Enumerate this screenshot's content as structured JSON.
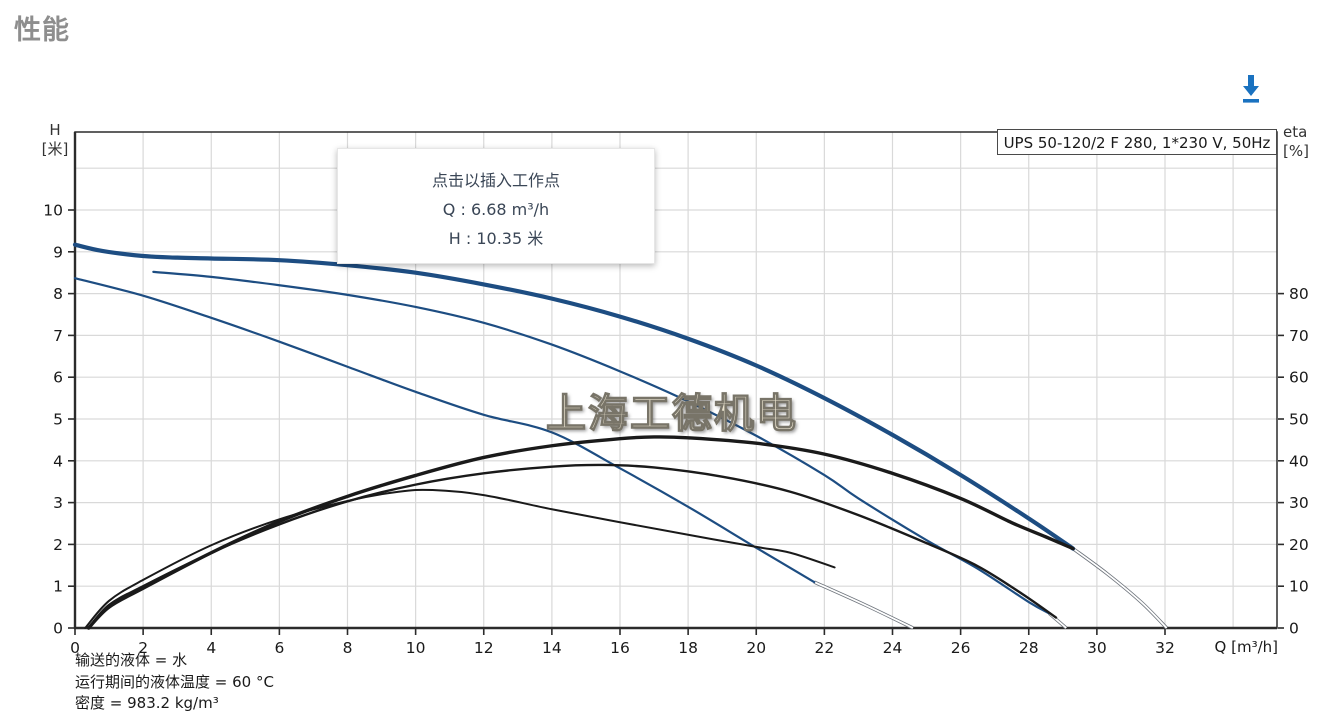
{
  "page": {
    "title": "性能"
  },
  "toolbar": {
    "download_tooltip": "download"
  },
  "tooltip": {
    "line1": "点击以插入工作点",
    "line2": "Q : 6.68 m³/h",
    "line3": "H : 10.35 米"
  },
  "footnotes": {
    "liquid": "输送的液体 = 水",
    "temperature": "运行期间的液体温度 = 60 °C",
    "density": "密度 = 983.2 kg/m³"
  },
  "chart_data": {
    "type": "line",
    "title": "UPS 50-120/2 F 280, 1*230 V, 50Hz",
    "watermark": "上海工德机电",
    "x_axis": {
      "label": "Q [m³/h]",
      "min": 0,
      "max": 35.3,
      "tick_step": 2,
      "ticks": [
        0,
        2,
        4,
        6,
        8,
        10,
        12,
        14,
        16,
        18,
        20,
        22,
        24,
        26,
        28,
        30,
        32
      ],
      "grid_max": 34
    },
    "y_left_axis": {
      "label_line1": "H",
      "label_line2": "[米]",
      "min": 0,
      "max": 11.87,
      "ticks": [
        0,
        1,
        2,
        3,
        4,
        5,
        6,
        7,
        8,
        9,
        10
      ],
      "grid_max": 11
    },
    "y_right_axis": {
      "label_line1": "eta",
      "label_line2": "[%]",
      "min": 0,
      "max": 118.7,
      "ticks": [
        0,
        10,
        20,
        30,
        40,
        50,
        60,
        70,
        80
      ]
    },
    "colors": {
      "blue": "#1d4d82",
      "black": "#1a1a1a",
      "extension_gray": "#6e747c",
      "grid": "#d9d9d9",
      "axis": "#2b2b2b",
      "accent_blue": "#1a72c0",
      "title_gray": "#8e8e8e"
    },
    "legend_position": "none",
    "grid": true,
    "series": [
      {
        "name": "speed3-head-curve",
        "axis": "H",
        "role": "blue",
        "width": 4.2,
        "points": [
          [
            0,
            9.17
          ],
          [
            0.8,
            9.02
          ],
          [
            2,
            8.9
          ],
          [
            3,
            8.86
          ],
          [
            4,
            8.84
          ],
          [
            6,
            8.8
          ],
          [
            8,
            8.68
          ],
          [
            10,
            8.5
          ],
          [
            12,
            8.22
          ],
          [
            14,
            7.88
          ],
          [
            16,
            7.45
          ],
          [
            18,
            6.92
          ],
          [
            20,
            6.28
          ],
          [
            22,
            5.5
          ],
          [
            24,
            4.62
          ],
          [
            26,
            3.66
          ],
          [
            28,
            2.62
          ],
          [
            29.3,
            1.9
          ]
        ]
      },
      {
        "name": "speed2-head-curve",
        "axis": "H",
        "role": "blue",
        "width": 2.2,
        "points": [
          [
            2.3,
            8.52
          ],
          [
            4,
            8.4
          ],
          [
            6,
            8.2
          ],
          [
            8,
            7.97
          ],
          [
            10,
            7.68
          ],
          [
            12,
            7.3
          ],
          [
            14,
            6.78
          ],
          [
            16,
            6.14
          ],
          [
            18,
            5.42
          ],
          [
            20,
            4.6
          ],
          [
            22,
            3.66
          ],
          [
            23,
            3.1
          ],
          [
            25,
            2.1
          ],
          [
            26.5,
            1.42
          ],
          [
            28,
            0.62
          ],
          [
            28.6,
            0.35
          ]
        ]
      },
      {
        "name": "speed1-head-curve",
        "axis": "H",
        "role": "blue",
        "width": 2.2,
        "points": [
          [
            0,
            8.37
          ],
          [
            2,
            7.95
          ],
          [
            4,
            7.42
          ],
          [
            6,
            6.85
          ],
          [
            8,
            6.25
          ],
          [
            10,
            5.65
          ],
          [
            12,
            5.1
          ],
          [
            14,
            4.68
          ],
          [
            16,
            3.82
          ],
          [
            18,
            2.9
          ],
          [
            20,
            1.92
          ],
          [
            21.7,
            1.1
          ]
        ]
      },
      {
        "name": "speed3-head-extension",
        "axis": "H",
        "role": "extension",
        "points": [
          [
            29.3,
            1.9
          ],
          [
            30.3,
            1.3
          ],
          [
            31.3,
            0.62
          ],
          [
            32.05,
            0
          ]
        ]
      },
      {
        "name": "speed2-head-extension",
        "axis": "H",
        "role": "extension",
        "points": [
          [
            28.6,
            0.35
          ],
          [
            29.1,
            0
          ]
        ]
      },
      {
        "name": "speed1-head-extension",
        "axis": "H",
        "role": "extension",
        "points": [
          [
            21.7,
            1.1
          ],
          [
            23.2,
            0.55
          ],
          [
            24.6,
            0
          ]
        ]
      },
      {
        "name": "speed3-eta-curve",
        "axis": "eta",
        "role": "black",
        "width": 3.4,
        "points": [
          [
            0.4,
            0
          ],
          [
            1,
            5
          ],
          [
            2,
            9.5
          ],
          [
            4,
            18
          ],
          [
            6,
            25.5
          ],
          [
            8,
            31.5
          ],
          [
            10,
            36.5
          ],
          [
            12,
            40.8
          ],
          [
            14,
            43.6
          ],
          [
            16,
            45.3
          ],
          [
            17,
            45.7
          ],
          [
            18,
            45.5
          ],
          [
            20,
            44.2
          ],
          [
            22,
            41.6
          ],
          [
            24,
            37
          ],
          [
            26,
            31
          ],
          [
            27.5,
            25.2
          ],
          [
            28.5,
            21.8
          ],
          [
            29.3,
            19
          ]
        ]
      },
      {
        "name": "speed2-eta-curve",
        "axis": "eta",
        "role": "black",
        "width": 2.4,
        "points": [
          [
            0.4,
            0
          ],
          [
            1,
            5.5
          ],
          [
            2,
            10
          ],
          [
            4,
            18
          ],
          [
            6,
            24.8
          ],
          [
            8,
            30.3
          ],
          [
            10,
            34.3
          ],
          [
            12,
            37
          ],
          [
            14,
            38.6
          ],
          [
            15.5,
            39
          ],
          [
            17,
            38.4
          ],
          [
            19,
            36.2
          ],
          [
            21,
            32.6
          ],
          [
            23,
            27
          ],
          [
            25,
            20.3
          ],
          [
            26.5,
            14.8
          ],
          [
            27.8,
            8.2
          ],
          [
            28.8,
            2.5
          ]
        ]
      },
      {
        "name": "speed1-eta-curve",
        "axis": "eta",
        "role": "black",
        "width": 2,
        "points": [
          [
            0.3,
            0
          ],
          [
            1,
            6.5
          ],
          [
            2,
            11.5
          ],
          [
            4,
            19.8
          ],
          [
            6,
            26
          ],
          [
            8,
            30.4
          ],
          [
            9.5,
            32.6
          ],
          [
            10.5,
            33
          ],
          [
            12,
            31.8
          ],
          [
            14,
            28.4
          ],
          [
            16,
            25.3
          ],
          [
            18,
            22.3
          ],
          [
            20,
            19.4
          ],
          [
            21,
            18
          ],
          [
            22.3,
            14.5
          ]
        ]
      }
    ],
    "annotations": {
      "working_point_hint": {
        "q_m3h": 6.68,
        "h_m": 10.35
      }
    }
  }
}
